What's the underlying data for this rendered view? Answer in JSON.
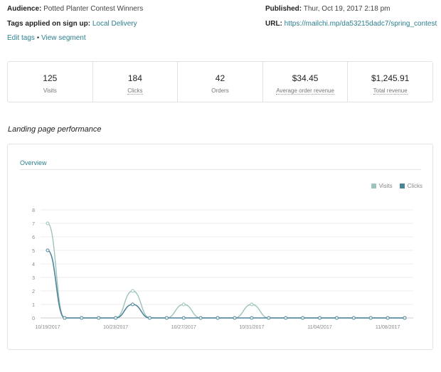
{
  "meta": {
    "audience_label": "Audience:",
    "audience": "Potted Planter Contest Winners",
    "tags_label": "Tags applied on sign up:",
    "tags": "Local Delivery",
    "edit_tags": "Edit tags",
    "sep": "•",
    "view_segment": "View segment",
    "published_label": "Published:",
    "published": "Thur, Oct 19, 2017 2:18 pm",
    "url_label": "URL:",
    "url": "https://mailchi.mp/da53215dadc7/spring_contest"
  },
  "stats": [
    {
      "value": "125",
      "label": "Visits"
    },
    {
      "value": "184",
      "label": "Clicks"
    },
    {
      "value": "42",
      "label": "Orders"
    },
    {
      "value": "$34.45",
      "label": "Average order revenue"
    },
    {
      "value": "$1,245.91",
      "label": "Total revenue"
    }
  ],
  "section_title": "Landing page performance",
  "tab": "Overview",
  "colors": {
    "visits": "#9cc4bc",
    "clicks": "#4e8499",
    "link": "#2d7f8f"
  },
  "chart_data": {
    "type": "line",
    "x": [
      "10/19/2017",
      "10/20/2017",
      "10/21/2017",
      "10/22/2017",
      "10/23/2017",
      "10/24/2017",
      "10/25/2017",
      "10/26/2017",
      "10/27/2017",
      "10/28/2017",
      "10/29/2017",
      "10/30/2017",
      "10/31/2017",
      "11/01/2017",
      "11/02/2017",
      "11/03/2017",
      "11/04/2017",
      "11/05/2017",
      "11/06/2017",
      "11/07/2017",
      "11/08/2017",
      "11/09/2017"
    ],
    "xticks": [
      "10/19/2017",
      "10/23/2017",
      "10/27/2017",
      "10/31/2017",
      "11/04/2017",
      "11/08/2017"
    ],
    "yticks": [
      "0",
      "1",
      "2",
      "3",
      "4",
      "5",
      "6",
      "7",
      "8"
    ],
    "ylim": [
      0,
      8
    ],
    "series": [
      {
        "name": "Visits",
        "values": [
          7,
          0,
          0,
          0,
          0,
          2,
          0,
          0,
          1,
          0,
          0,
          0,
          1,
          0,
          0,
          0,
          0,
          0,
          0,
          0,
          0,
          0
        ]
      },
      {
        "name": "Clicks",
        "values": [
          5,
          0,
          0,
          0,
          0,
          1,
          0,
          0,
          0,
          0,
          0,
          0,
          0,
          0,
          0,
          0,
          0,
          0,
          0,
          0,
          0,
          0
        ]
      }
    ],
    "legend": "top-right"
  }
}
